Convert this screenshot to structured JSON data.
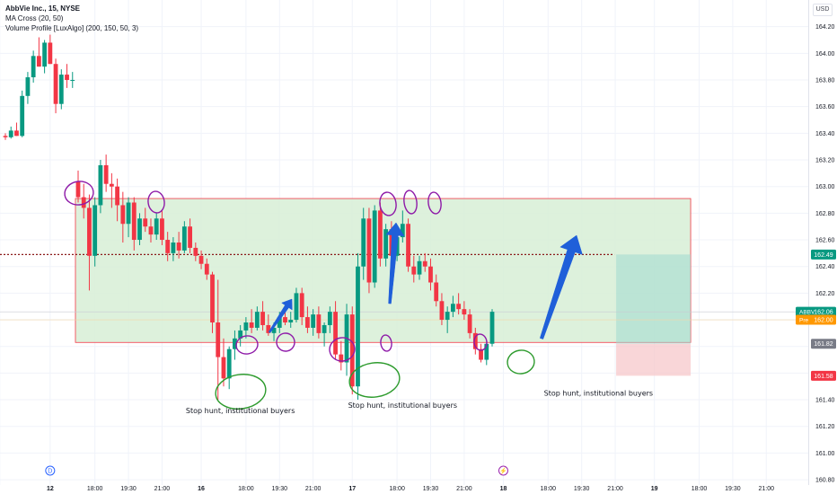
{
  "header": {
    "symbol_line": "AbbVie Inc., 15, NYSE",
    "indicator_1": "MA Cross (20, 50)",
    "indicator_2": "Volume Profile [LuxAlgo] (200, 150, 50, 3)",
    "currency": "USD"
  },
  "chart_data": {
    "type": "candlestick",
    "ylim": [
      160.76,
      164.4
    ],
    "y_ticks": [
      164.2,
      164.0,
      163.8,
      163.6,
      163.4,
      163.2,
      163.0,
      162.8,
      162.6,
      162.4,
      162.2,
      162.0,
      161.8,
      161.6,
      161.4,
      161.2,
      161.0,
      160.8
    ],
    "x_ticks": [
      {
        "label": "21:00",
        "slot": -1
      },
      {
        "label": "12",
        "slot": 8
      },
      {
        "label": "18:00",
        "slot": 16
      },
      {
        "label": "19:30",
        "slot": 22
      },
      {
        "label": "21:00",
        "slot": 28
      },
      {
        "label": "16",
        "slot": 35
      },
      {
        "label": "18:00",
        "slot": 43
      },
      {
        "label": "19:30",
        "slot": 49
      },
      {
        "label": "21:00",
        "slot": 55
      },
      {
        "label": "17",
        "slot": 62
      },
      {
        "label": "18:00",
        "slot": 70
      },
      {
        "label": "19:30",
        "slot": 76
      },
      {
        "label": "21:00",
        "slot": 82
      },
      {
        "label": "18",
        "slot": 89
      },
      {
        "label": "18:00",
        "slot": 97
      },
      {
        "label": "19:30",
        "slot": 103
      },
      {
        "label": "21:00",
        "slot": 109
      },
      {
        "label": "19",
        "slot": 116
      },
      {
        "label": "18:00",
        "slot": 124
      },
      {
        "label": "19:30",
        "slot": 130
      },
      {
        "label": "21:00",
        "slot": 136
      }
    ],
    "candles": [
      [
        163.38,
        163.4,
        163.35,
        163.37
      ],
      [
        163.37,
        163.45,
        163.36,
        163.42
      ],
      [
        163.42,
        163.48,
        163.38,
        163.38
      ],
      [
        163.38,
        163.72,
        163.37,
        163.68
      ],
      [
        163.68,
        163.86,
        163.62,
        163.82
      ],
      [
        163.82,
        164.02,
        163.78,
        163.98
      ],
      [
        163.98,
        164.12,
        163.9,
        163.9
      ],
      [
        163.9,
        164.1,
        163.85,
        164.08
      ],
      [
        164.08,
        164.14,
        163.92,
        163.92
      ],
      [
        163.92,
        163.96,
        163.55,
        163.62
      ],
      [
        163.62,
        163.88,
        163.58,
        163.84
      ],
      [
        163.84,
        163.92,
        163.74,
        163.8
      ],
      [
        163.8,
        163.86,
        163.74,
        163.8
      ],
      [
        163.04,
        163.12,
        162.88,
        162.92
      ],
      [
        162.92,
        163.02,
        162.76,
        162.84
      ],
      [
        162.84,
        162.94,
        162.22,
        162.48
      ],
      [
        162.48,
        162.92,
        162.4,
        162.86
      ],
      [
        162.86,
        163.2,
        162.8,
        163.16
      ],
      [
        163.16,
        163.24,
        162.96,
        163.02
      ],
      [
        163.02,
        163.1,
        162.84,
        163.0
      ],
      [
        163.0,
        163.06,
        162.74,
        162.86
      ],
      [
        162.86,
        162.96,
        162.58,
        162.72
      ],
      [
        162.72,
        162.92,
        162.62,
        162.88
      ],
      [
        162.88,
        162.92,
        162.52,
        162.6
      ],
      [
        162.6,
        162.8,
        162.56,
        162.76
      ],
      [
        162.76,
        162.84,
        162.66,
        162.7
      ],
      [
        162.7,
        162.76,
        162.58,
        162.64
      ],
      [
        162.64,
        162.8,
        162.6,
        162.76
      ],
      [
        162.76,
        162.82,
        162.56,
        162.6
      ],
      [
        162.6,
        162.66,
        162.44,
        162.5
      ],
      [
        162.5,
        162.62,
        162.44,
        162.58
      ],
      [
        162.58,
        162.66,
        162.46,
        162.52
      ],
      [
        162.52,
        162.74,
        162.5,
        162.7
      ],
      [
        162.7,
        162.76,
        162.5,
        162.54
      ],
      [
        162.54,
        162.58,
        162.44,
        162.48
      ],
      [
        162.48,
        162.52,
        162.38,
        162.42
      ],
      [
        162.42,
        162.46,
        162.3,
        162.34
      ],
      [
        162.34,
        162.36,
        161.9,
        161.98
      ],
      [
        161.98,
        162.3,
        161.4,
        161.72
      ],
      [
        161.72,
        161.86,
        161.5,
        161.56
      ],
      [
        161.56,
        161.8,
        161.48,
        161.78
      ],
      [
        161.78,
        161.92,
        161.7,
        161.86
      ],
      [
        161.86,
        161.96,
        161.8,
        161.92
      ],
      [
        161.92,
        162.02,
        161.86,
        161.98
      ],
      [
        161.98,
        162.08,
        161.9,
        161.94
      ],
      [
        161.94,
        162.1,
        161.92,
        162.06
      ],
      [
        162.06,
        162.14,
        161.92,
        161.96
      ],
      [
        161.96,
        162.04,
        161.88,
        161.9
      ],
      [
        161.9,
        161.98,
        161.84,
        161.94
      ],
      [
        161.94,
        162.06,
        161.9,
        162.02
      ],
      [
        162.02,
        162.1,
        161.96,
        161.98
      ],
      [
        161.98,
        162.06,
        161.94,
        162.0
      ],
      [
        162.0,
        162.24,
        161.98,
        162.2
      ],
      [
        162.2,
        162.24,
        161.96,
        162.02
      ],
      [
        162.02,
        162.1,
        161.9,
        161.94
      ],
      [
        161.94,
        162.08,
        161.88,
        162.04
      ],
      [
        162.04,
        162.1,
        161.86,
        161.9
      ],
      [
        161.9,
        161.98,
        161.8,
        161.96
      ],
      [
        161.96,
        162.1,
        161.9,
        162.06
      ],
      [
        162.06,
        162.14,
        161.7,
        161.74
      ],
      [
        161.74,
        161.84,
        161.62,
        161.68
      ],
      [
        161.68,
        162.12,
        161.58,
        162.04
      ],
      [
        162.04,
        162.1,
        161.44,
        161.5
      ],
      [
        161.5,
        162.5,
        161.4,
        162.4
      ],
      [
        162.4,
        162.84,
        162.3,
        162.76
      ],
      [
        162.76,
        162.84,
        162.2,
        162.28
      ],
      [
        162.28,
        162.86,
        162.24,
        162.82
      ],
      [
        162.82,
        162.88,
        162.4,
        162.46
      ],
      [
        162.46,
        162.72,
        162.4,
        162.68
      ],
      [
        162.68,
        162.74,
        162.42,
        162.48
      ],
      [
        162.48,
        162.66,
        162.44,
        162.62
      ],
      [
        162.62,
        162.82,
        162.58,
        162.72
      ],
      [
        162.72,
        162.76,
        162.36,
        162.4
      ],
      [
        162.4,
        162.48,
        162.28,
        162.34
      ],
      [
        162.34,
        162.48,
        162.3,
        162.44
      ],
      [
        162.44,
        162.5,
        162.36,
        162.4
      ],
      [
        162.4,
        162.46,
        162.22,
        162.28
      ],
      [
        162.28,
        162.34,
        162.1,
        162.14
      ],
      [
        162.14,
        162.2,
        161.96,
        162.0
      ],
      [
        162.0,
        162.1,
        161.9,
        162.06
      ],
      [
        162.06,
        162.18,
        162.02,
        162.12
      ],
      [
        162.12,
        162.2,
        162.04,
        162.08
      ],
      [
        162.08,
        162.14,
        162.0,
        162.04
      ],
      [
        162.04,
        162.08,
        161.86,
        161.9
      ],
      [
        161.9,
        161.94,
        161.74,
        161.78
      ],
      [
        161.78,
        161.82,
        161.68,
        161.7
      ],
      [
        161.7,
        161.84,
        161.66,
        161.82
      ],
      [
        161.82,
        162.08,
        161.8,
        162.06
      ]
    ],
    "zone": {
      "x0": 13,
      "x1": 122,
      "top": 162.91,
      "bottom": 161.83
    },
    "prior_close": {
      "value": 162.49,
      "label": "162.49"
    },
    "position": {
      "x0": 109,
      "x1": 122,
      "entry": 161.82,
      "target": 162.49,
      "stop": 161.58
    },
    "price_labels": [
      {
        "symbol": "ABBV",
        "text": "162.06",
        "value": 162.06,
        "bg": "#089981"
      },
      {
        "symbol": "Pre",
        "text": "162.00",
        "value": 162.0,
        "bg": "#ff9800"
      },
      {
        "symbol": "",
        "text": "161.82",
        "value": 161.82,
        "bg": "#787b86"
      },
      {
        "symbol": "",
        "text": "161.58",
        "value": 161.58,
        "bg": "#f23645"
      }
    ],
    "annotations": [
      {
        "text": "Stop hunt, institutional buyers",
        "slot": 42,
        "value": 161.3
      },
      {
        "text": "Stop hunt, institutional buyers",
        "slot": 71,
        "value": 161.34
      },
      {
        "text": "Stop hunt, institutional buyers",
        "slot": 106,
        "value": 161.43
      }
    ],
    "session_markers": [
      {
        "glyph": "D",
        "slot": 8,
        "color": "#2962ff"
      },
      {
        "glyph": "⚡",
        "slot": 89,
        "color": "#9c27b0"
      }
    ],
    "colors": {
      "up": "#089981",
      "down": "#f23645",
      "zone": "#d7efd6",
      "zone_border": "#f23645",
      "draw_circle": "#8e1aa8",
      "stop_circle": "#2e9b2e",
      "arrow": "#1f5fd9",
      "dotted": "#8b1a1a"
    }
  }
}
